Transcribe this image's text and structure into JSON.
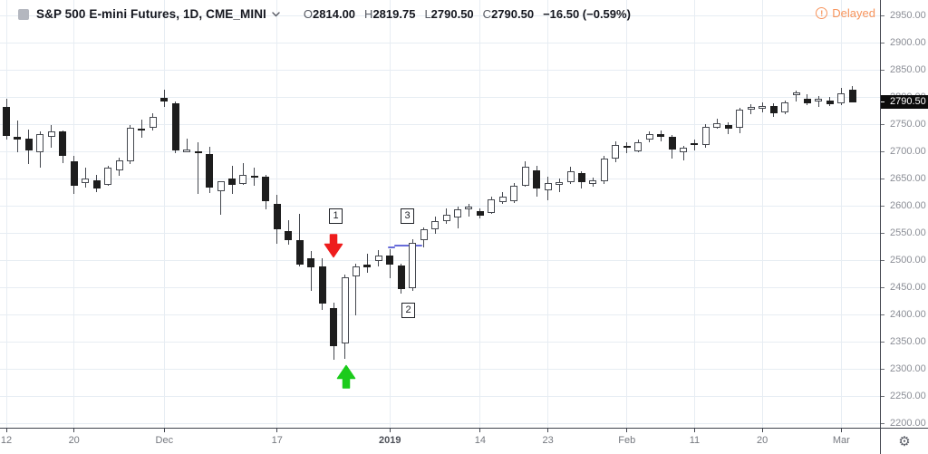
{
  "header": {
    "symbol_title": "S&P 500 E-mini Futures, 1D, CME_MINI",
    "ohlc": {
      "open_label": "O",
      "open": "2814.00",
      "high_label": "H",
      "high": "2819.75",
      "low_label": "L",
      "low": "2790.50",
      "close_label": "C",
      "close": "2790.50",
      "change": "−16.50 (−0.59%)"
    },
    "delayed_label": "Delayed"
  },
  "icons": {
    "gear": "⚙",
    "alert": "!"
  },
  "price_axis": {
    "labels": [
      "2950.00",
      "2900.00",
      "2850.00",
      "2800.00",
      "2750.00",
      "2700.00",
      "2650.00",
      "2600.00",
      "2550.00",
      "2500.00",
      "2450.00",
      "2400.00",
      "2350.00",
      "2300.00",
      "2250.00",
      "2200.00"
    ],
    "current_price": "2790.50"
  },
  "time_axis": {
    "ticks": [
      {
        "label": "12",
        "candle": 0,
        "bold": false
      },
      {
        "label": "20",
        "candle": 6,
        "bold": false
      },
      {
        "label": "Dec",
        "candle": 14,
        "bold": false
      },
      {
        "label": "17",
        "candle": 24,
        "bold": false
      },
      {
        "label": "2019",
        "candle": 34,
        "bold": true
      },
      {
        "label": "14",
        "candle": 42,
        "bold": false
      },
      {
        "label": "23",
        "candle": 48,
        "bold": false
      },
      {
        "label": "Feb",
        "candle": 55,
        "bold": false
      },
      {
        "label": "11",
        "candle": 61,
        "bold": false
      },
      {
        "label": "20",
        "candle": 67,
        "bold": false
      },
      {
        "label": "Mar",
        "candle": 74,
        "bold": false
      }
    ]
  },
  "chart_data": {
    "type": "candlestick",
    "title": "S&P 500 E-mini Futures, 1D, CME_MINI",
    "ylabel": "price",
    "ylim": [
      2200,
      2950
    ],
    "grid": true,
    "price_gridlines": [
      2950,
      2900,
      2850,
      2800,
      2750,
      2700,
      2650,
      2600,
      2550,
      2500,
      2450,
      2400,
      2350,
      2300,
      2250,
      2200
    ],
    "candles_format": [
      "date",
      "open",
      "high",
      "low",
      "close"
    ],
    "candles": [
      [
        "Nov 12",
        2782,
        2797,
        2722,
        2728
      ],
      [
        "Nov 13",
        2727,
        2757,
        2699,
        2722
      ],
      [
        "Nov 14",
        2724,
        2740,
        2677,
        2701
      ],
      [
        "Nov 15",
        2699,
        2737,
        2670,
        2731
      ],
      [
        "Nov 16",
        2727,
        2748,
        2707,
        2737
      ],
      [
        "Nov 19",
        2736,
        2739,
        2678,
        2691
      ],
      [
        "Nov 20",
        2681,
        2692,
        2621,
        2636
      ],
      [
        "Nov 21",
        2642,
        2670,
        2634,
        2650
      ],
      [
        "Nov 23",
        2646,
        2656,
        2625,
        2632
      ],
      [
        "Nov 26",
        2639,
        2673,
        2636,
        2670
      ],
      [
        "Nov 27",
        2665,
        2688,
        2655,
        2684
      ],
      [
        "Nov 28",
        2682,
        2749,
        2677,
        2744
      ],
      [
        "Nov 29",
        2742,
        2758,
        2725,
        2738
      ],
      [
        "Nov 30",
        2744,
        2770,
        2738,
        2763
      ],
      [
        "Dec 3",
        2798,
        2814,
        2782,
        2792
      ],
      [
        "Dec 4",
        2788,
        2791,
        2697,
        2702
      ],
      [
        "Dec 5",
        2703,
        2723,
        2698,
        2704
      ],
      [
        "Dec 6",
        2700,
        2716,
        2621,
        2697
      ],
      [
        "Dec 7",
        2695,
        2708,
        2623,
        2633
      ],
      [
        "Dec 10",
        2626,
        2645,
        2583,
        2645
      ],
      [
        "Dec 11",
        2650,
        2674,
        2621,
        2639
      ],
      [
        "Dec 12",
        2640,
        2678,
        2638,
        2656
      ],
      [
        "Dec 13",
        2655,
        2670,
        2637,
        2651
      ],
      [
        "Dec 14",
        2653,
        2656,
        2593,
        2609
      ],
      [
        "Dec 17",
        2603,
        2620,
        2530,
        2556
      ],
      [
        "Dec 18",
        2553,
        2573,
        2528,
        2536
      ],
      [
        "Dec 19",
        2537,
        2585,
        2488,
        2492
      ],
      [
        "Dec 20",
        2503,
        2516,
        2443,
        2487
      ],
      [
        "Dec 21",
        2489,
        2504,
        2408,
        2420
      ],
      [
        "Dec 24",
        2412,
        2422,
        2317,
        2342
      ],
      [
        "Dec 26",
        2347,
        2474,
        2319,
        2469
      ],
      [
        "Dec 27",
        2470,
        2494,
        2398,
        2489
      ],
      [
        "Dec 28",
        2492,
        2511,
        2477,
        2487
      ],
      [
        "Dec 31",
        2498,
        2518,
        2488,
        2508
      ],
      [
        "Jan 2",
        2509,
        2520,
        2467,
        2491
      ],
      [
        "Jan 3",
        2490,
        2493,
        2438,
        2447
      ],
      [
        "Jan 4",
        2448,
        2538,
        2443,
        2531
      ],
      [
        "Jan 7",
        2537,
        2560,
        2524,
        2556
      ],
      [
        "Jan 8",
        2556,
        2580,
        2548,
        2572
      ],
      [
        "Jan 9",
        2572,
        2595,
        2566,
        2584
      ],
      [
        "Jan 10",
        2578,
        2599,
        2558,
        2594
      ],
      [
        "Jan 11",
        2597,
        2603,
        2580,
        2599
      ],
      [
        "Jan 14",
        2590,
        2595,
        2577,
        2581
      ],
      [
        "Jan 15",
        2587,
        2616,
        2585,
        2612
      ],
      [
        "Jan 16",
        2607,
        2625,
        2604,
        2617
      ],
      [
        "Jan 17",
        2608,
        2642,
        2605,
        2636
      ],
      [
        "Jan 18",
        2637,
        2682,
        2635,
        2672
      ],
      [
        "Jan 22",
        2665,
        2673,
        2617,
        2631
      ],
      [
        "Jan 23",
        2628,
        2653,
        2610,
        2641
      ],
      [
        "Jan 24",
        2640,
        2650,
        2625,
        2643
      ],
      [
        "Jan 25",
        2644,
        2672,
        2640,
        2664
      ],
      [
        "Jan 28",
        2660,
        2664,
        2631,
        2643
      ],
      [
        "Jan 29",
        2640,
        2652,
        2635,
        2647
      ],
      [
        "Jan 30",
        2645,
        2692,
        2640,
        2686
      ],
      [
        "Jan 31",
        2686,
        2718,
        2680,
        2711
      ],
      [
        "Feb 1",
        2710,
        2717,
        2696,
        2706
      ],
      [
        "Feb 4",
        2700,
        2721,
        2698,
        2717
      ],
      [
        "Feb 5",
        2721,
        2737,
        2716,
        2732
      ],
      [
        "Feb 6",
        2731,
        2739,
        2719,
        2727
      ],
      [
        "Feb 7",
        2727,
        2730,
        2687,
        2704
      ],
      [
        "Feb 8",
        2698,
        2710,
        2684,
        2707
      ],
      [
        "Feb 11",
        2715,
        2722,
        2702,
        2711
      ],
      [
        "Feb 12",
        2712,
        2750,
        2707,
        2745
      ],
      [
        "Feb 13",
        2744,
        2760,
        2741,
        2751
      ],
      [
        "Feb 14",
        2748,
        2753,
        2731,
        2741
      ],
      [
        "Feb 15",
        2743,
        2780,
        2733,
        2776
      ],
      [
        "Feb 19",
        2778,
        2787,
        2768,
        2781
      ],
      [
        "Feb 20",
        2778,
        2790,
        2772,
        2784
      ],
      [
        "Feb 21",
        2784,
        2788,
        2764,
        2770
      ],
      [
        "Feb 22",
        2772,
        2794,
        2768,
        2790
      ],
      [
        "Feb 25",
        2805,
        2812,
        2791,
        2808
      ],
      [
        "Feb 26",
        2797,
        2805,
        2785,
        2789
      ],
      [
        "Feb 27",
        2791,
        2802,
        2782,
        2797
      ],
      [
        "Feb 28",
        2794,
        2800,
        2783,
        2787
      ],
      [
        "Mar 1",
        2788,
        2816,
        2785,
        2807
      ],
      [
        "Mar 4",
        2814,
        2819.75,
        2790.5,
        2790.5
      ]
    ],
    "annotations": {
      "boxes": [
        {
          "label": "1",
          "x": 371,
          "y": 239
        },
        {
          "label": "2",
          "x": 451,
          "y": 343
        },
        {
          "label": "3",
          "x": 450,
          "y": 239
        }
      ],
      "arrows": [
        {
          "dir": "down",
          "color": "#ee1c1c",
          "x": 368,
          "y": 271
        },
        {
          "dir": "up",
          "color": "#1bcb1b",
          "x": 382,
          "y": 415
        }
      ],
      "trendline": {
        "color": "#676cd9",
        "segments": [
          {
            "x1": 428,
            "x2": 436,
            "y": 272.5
          },
          {
            "x1": 435,
            "x2": 466,
            "y": 270.5
          }
        ]
      }
    },
    "colors": {
      "up_fill": "#ffffff",
      "up_border": "#45484f",
      "down_fill": "#1d1d1d",
      "grid": "#e7edf3",
      "axis_text": "#8b8e96",
      "axis_line": "#41444d",
      "delayed": "#f7945c",
      "current_price_bg": "#0c0c0c"
    }
  }
}
